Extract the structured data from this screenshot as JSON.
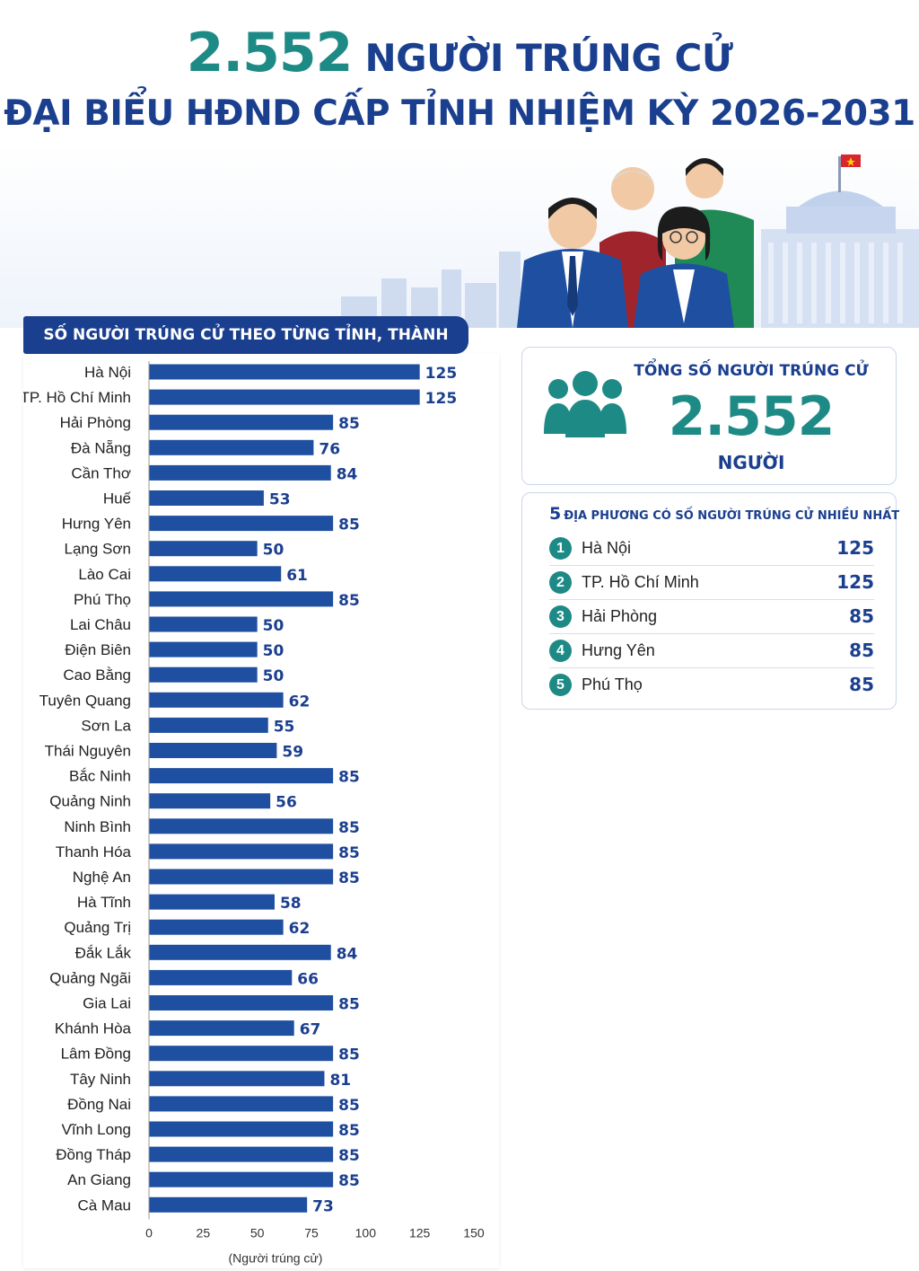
{
  "header": {
    "title_number": "2.552",
    "title_line1_rest": "NGƯỜI TRÚNG CỬ",
    "title_line2": "ĐẠI BIỂU HĐND CẤP TỈNH NHIỆM KỲ 2026-2031"
  },
  "chart_section": {
    "heading": "SỐ NGƯỜI TRÚNG CỬ THEO TỪNG TỈNH, THÀNH PHỐ"
  },
  "chart_data": {
    "type": "bar",
    "orientation": "horizontal",
    "title": "SỐ NGƯỜI TRÚNG CỬ THEO TỪNG TỈNH, THÀNH PHỐ",
    "xlabel": "(Người trúng cử)",
    "ylabel": "",
    "xlim": [
      0,
      150
    ],
    "xticks": [
      0,
      25,
      50,
      75,
      100,
      125,
      150
    ],
    "grid": false,
    "bar_color": "#1f4fa0",
    "categories": [
      "Hà Nội",
      "TP. Hồ Chí Minh",
      "Hải Phòng",
      "Đà Nẵng",
      "Cần Thơ",
      "Huế",
      "Hưng Yên",
      "Lạng Sơn",
      "Lào Cai",
      "Phú Thọ",
      "Lai Châu",
      "Điện Biên",
      "Cao Bằng",
      "Tuyên Quang",
      "Sơn La",
      "Thái Nguyên",
      "Bắc Ninh",
      "Quảng Ninh",
      "Ninh Bình",
      "Thanh Hóa",
      "Nghệ An",
      "Hà Tĩnh",
      "Quảng Trị",
      "Đắk Lắk",
      "Quảng Ngãi",
      "Gia Lai",
      "Khánh Hòa",
      "Lâm Đồng",
      "Tây Ninh",
      "Đồng Nai",
      "Vĩnh Long",
      "Đồng Tháp",
      "An Giang",
      "Cà Mau"
    ],
    "values": [
      125,
      125,
      85,
      76,
      84,
      53,
      85,
      50,
      61,
      85,
      50,
      50,
      50,
      62,
      55,
      59,
      85,
      56,
      85,
      85,
      85,
      58,
      62,
      84,
      66,
      85,
      67,
      85,
      81,
      85,
      85,
      85,
      85,
      73
    ]
  },
  "total": {
    "label": "TỔNG SỐ NGƯỜI TRÚNG CỬ",
    "value": "2.552",
    "unit": "NGƯỜI",
    "icon": "people-group-icon"
  },
  "top5": {
    "title_number": "5",
    "title_rest": "ĐỊA PHƯƠNG CÓ SỐ NGƯỜI TRÚNG CỬ NHIỀU NHẤT",
    "items": [
      {
        "rank": "1",
        "name": "Hà Nội",
        "value": "125"
      },
      {
        "rank": "2",
        "name": "TP. Hồ Chí Minh",
        "value": "125"
      },
      {
        "rank": "3",
        "name": "Hải Phòng",
        "value": "85"
      },
      {
        "rank": "4",
        "name": "Hưng Yên",
        "value": "85"
      },
      {
        "rank": "5",
        "name": "Phú Thọ",
        "value": "85"
      }
    ]
  },
  "colors": {
    "navy": "#1b3f8f",
    "teal": "#1e8a86",
    "bar": "#1f4fa0"
  }
}
